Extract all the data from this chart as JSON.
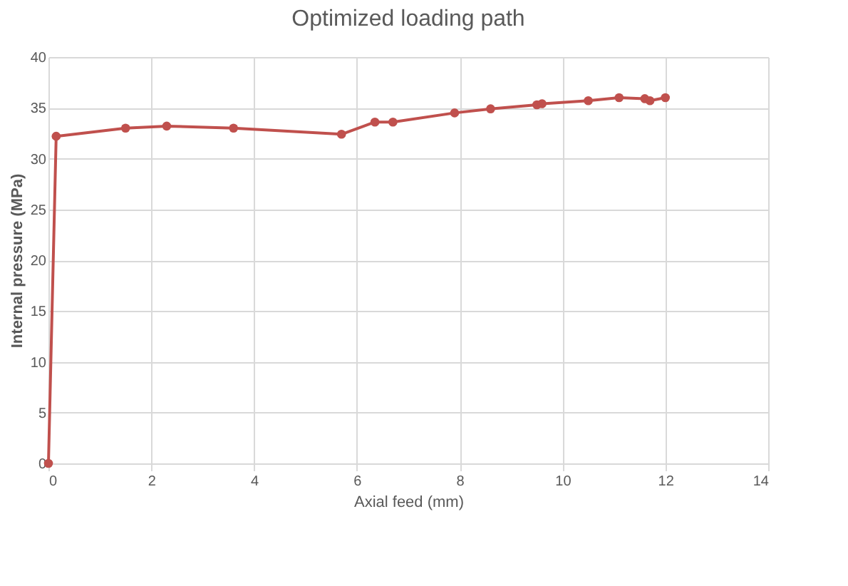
{
  "chart_data": {
    "type": "line",
    "title": "Optimized loading path",
    "xlabel": "Axial feed (mm)",
    "ylabel": "Internal pressure (MPa)",
    "x": [
      0,
      0.15,
      1.5,
      2.3,
      3.6,
      5.7,
      6.35,
      6.7,
      7.9,
      8.6,
      9.5,
      9.6,
      10.5,
      11.1,
      11.6,
      11.7,
      12
    ],
    "series": [
      {
        "color": "#c0504d",
        "values": [
          0,
          32.2,
          33,
          33.2,
          33,
          32.4,
          33.6,
          33.6,
          34.5,
          34.9,
          35.3,
          35.4,
          35.7,
          36,
          35.9,
          35.7,
          36
        ]
      }
    ],
    "xlim": [
      0,
      14
    ],
    "xticks": [
      0,
      2,
      4,
      6,
      8,
      10,
      12,
      14
    ],
    "ylim": [
      0,
      40
    ],
    "yticks": [
      0,
      5,
      10,
      15,
      20,
      25,
      30,
      35,
      40
    ],
    "grid": true,
    "marker": "circle"
  }
}
